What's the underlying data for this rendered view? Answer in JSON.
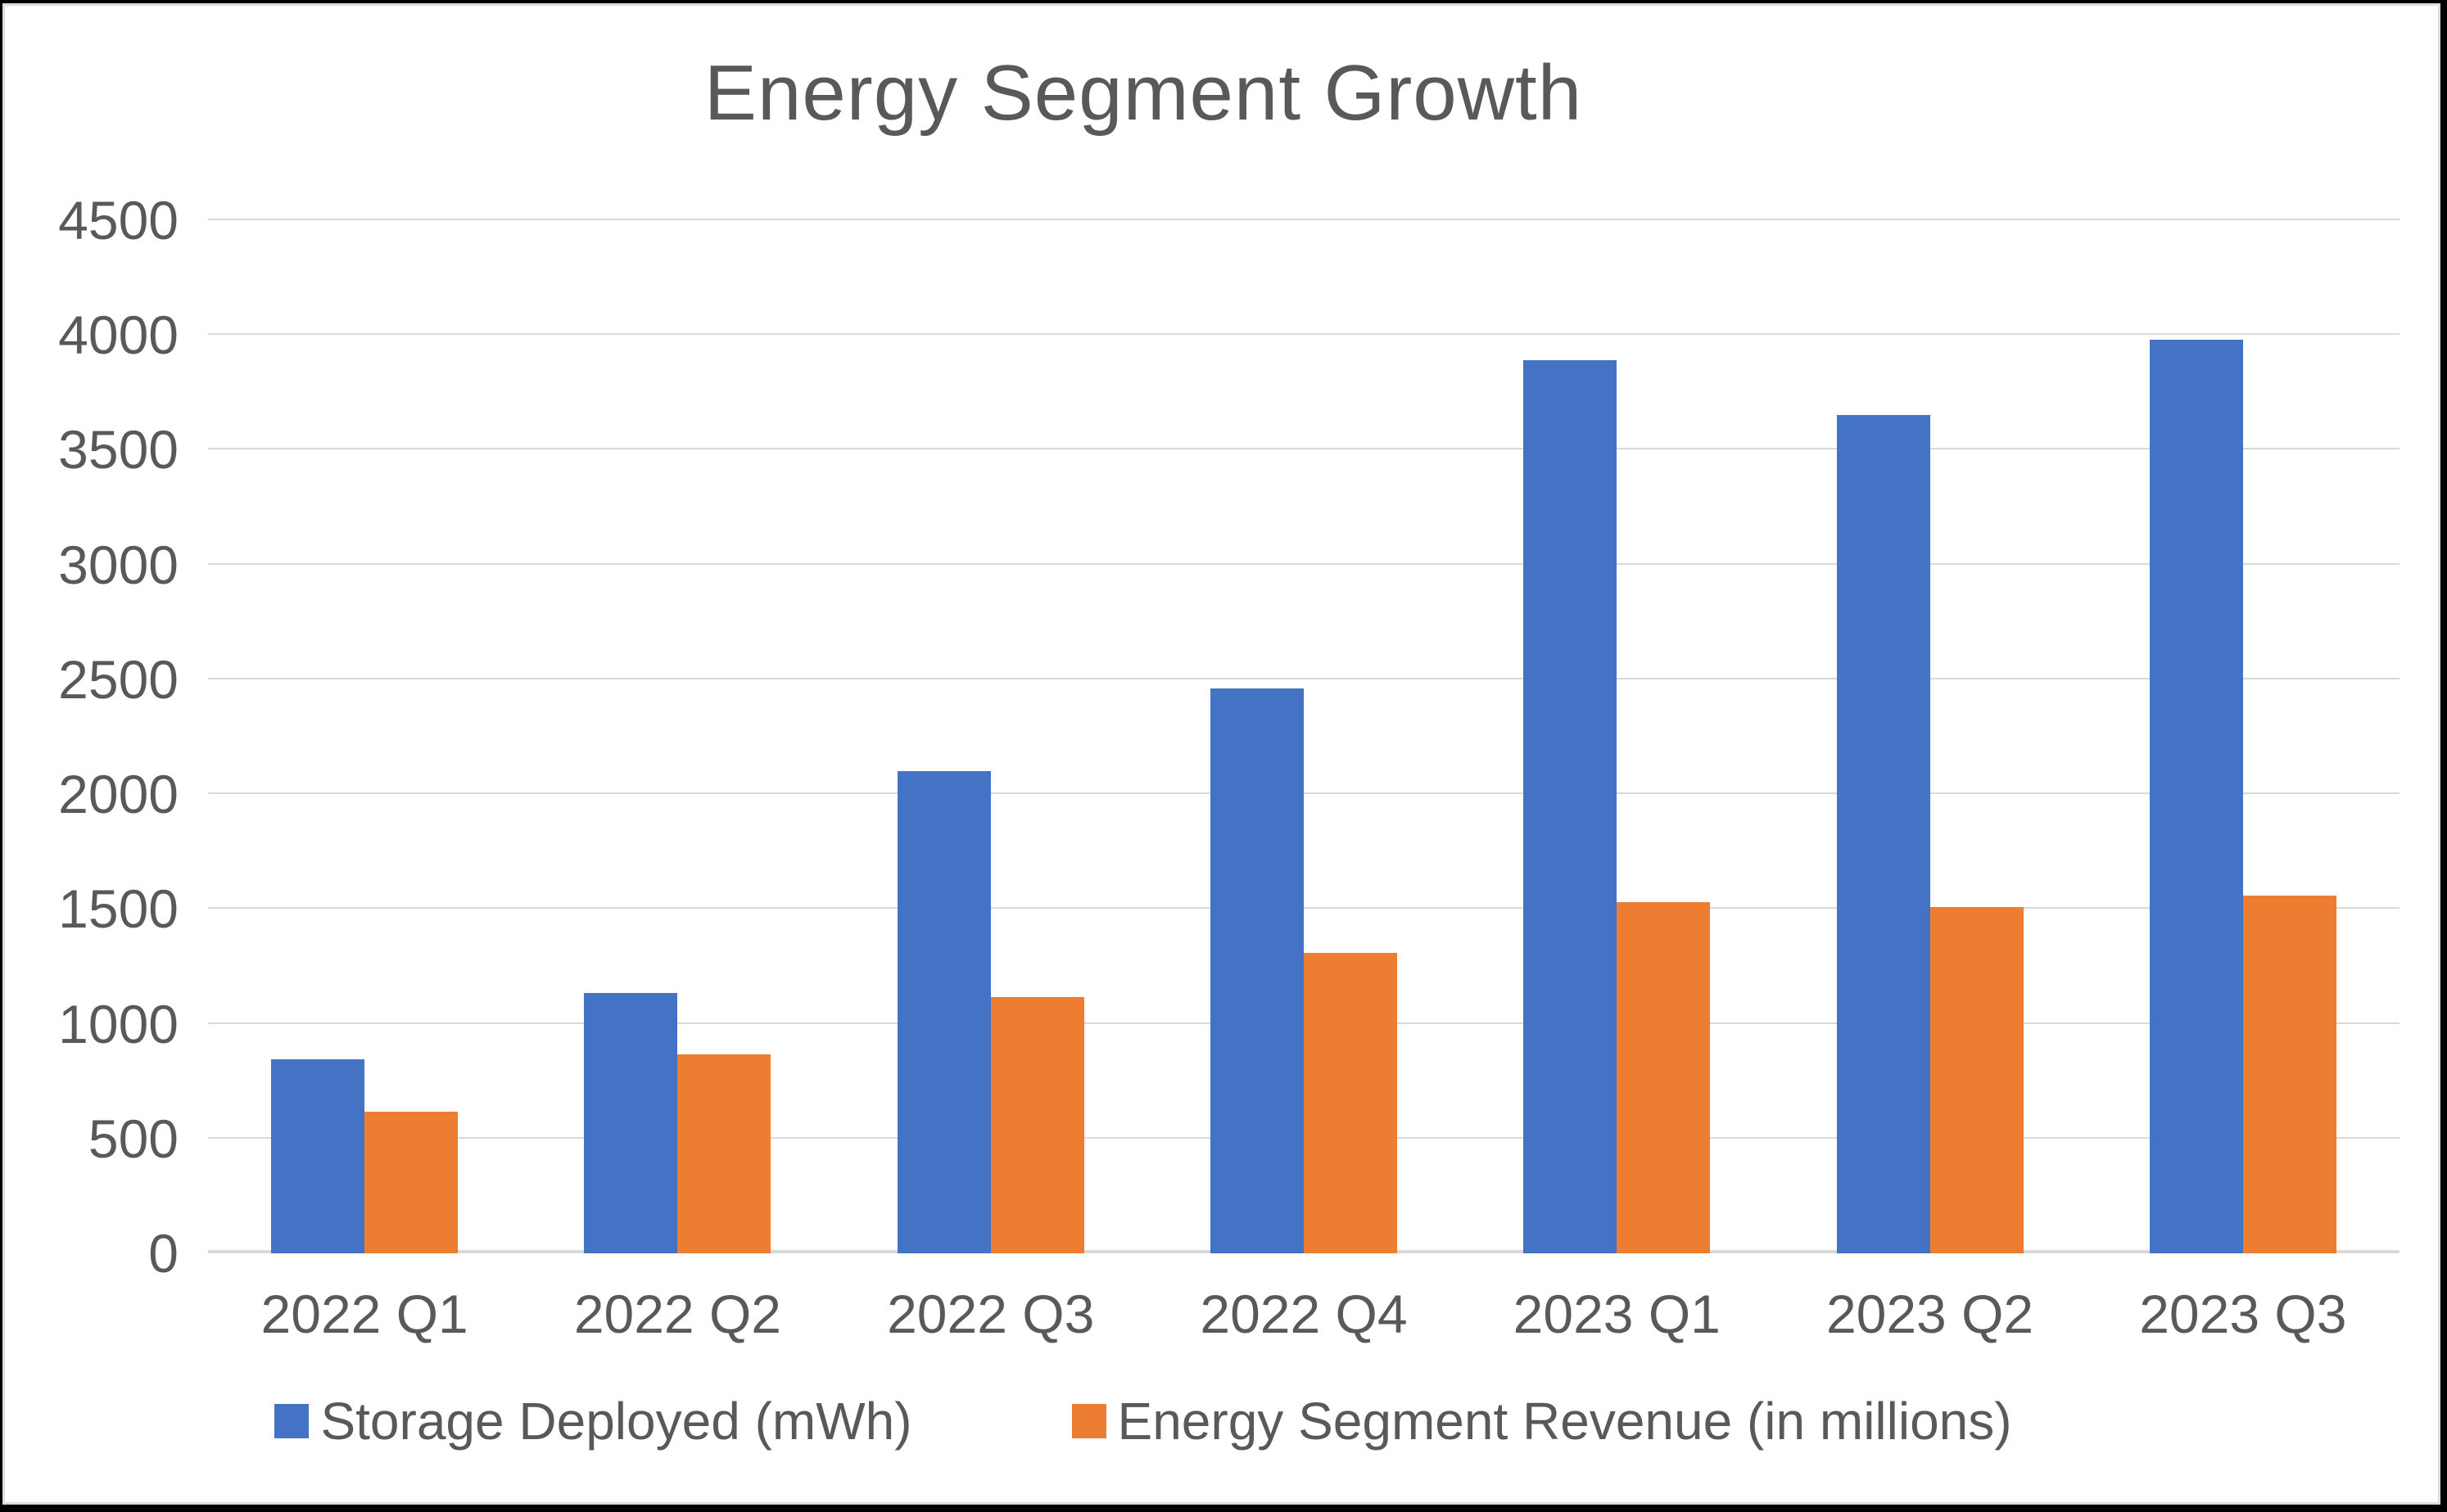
{
  "frame": {
    "outer_color": "#000000",
    "inner_border_color": "#dcdcdc",
    "background": "#ffffff"
  },
  "chart_data": {
    "type": "bar",
    "title": "Energy Segment Growth",
    "categories": [
      "2022 Q1",
      "2022 Q2",
      "2022 Q3",
      "2022 Q4",
      "2023 Q1",
      "2023 Q2",
      "2023 Q3"
    ],
    "series": [
      {
        "name": "Storage Deployed (mWh)",
        "color": "#4472C4",
        "values": [
          846,
          1133,
          2100,
          2462,
          3889,
          3653,
          3980
        ]
      },
      {
        "name": "Energy Segment Revenue (in millions)",
        "color": "#ED7D31",
        "values": [
          616,
          866,
          1117,
          1310,
          1529,
          1509,
          1559
        ]
      }
    ],
    "xlabel": "",
    "ylabel": "",
    "ylim": [
      0,
      4500
    ],
    "yticks": [
      0,
      500,
      1000,
      1500,
      2000,
      2500,
      3000,
      3500,
      4000,
      4500
    ],
    "grid": true,
    "legend_position": "bottom",
    "text_color": "#595959",
    "gridline_color": "#d9d9d9"
  }
}
